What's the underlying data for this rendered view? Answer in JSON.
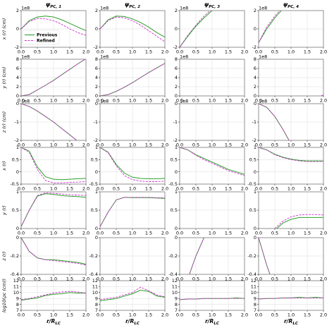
{
  "chart_data": {
    "type": "line",
    "columns": [
      {
        "label": "ψ",
        "sub": "PC, 1"
      },
      {
        "label": "ψ",
        "sub": "PC, 2"
      },
      {
        "label": "ψ",
        "sub": "PC, 3"
      },
      {
        "label": "ψ",
        "sub": "PC, 4"
      }
    ],
    "xlabel": {
      "main": "r/R",
      "sub": "LC"
    },
    "xlim": [
      0,
      2
    ],
    "xticks": [
      "0.0",
      "0.5",
      "1.0",
      "1.5",
      "2.0"
    ],
    "x": [
      0,
      0.25,
      0.5,
      0.75,
      1.0,
      1.25,
      1.5,
      1.75,
      2.0
    ],
    "grid": true,
    "legend": {
      "placement": "lower-left of first panel",
      "entries": [
        {
          "name": "Previous",
          "color": "#2ca02c",
          "style": "solid"
        },
        {
          "name": "Refined",
          "color": "#cc33cc",
          "style": "dashed"
        }
      ]
    },
    "rows": [
      {
        "ylabel": "x (r) (cm)",
        "multiplier": "1e8",
        "ylim": [
          -2,
          2
        ],
        "yticks": [
          -2,
          0,
          2
        ],
        "panels": [
          {
            "previous": [
              0,
              0.9,
              1.3,
              1.4,
              1.3,
              1.0,
              0.6,
              0.2,
              -0.2
            ],
            "refined": [
              0,
              0.8,
              1.15,
              1.1,
              0.9,
              0.5,
              0.0,
              -0.4,
              -0.7
            ]
          },
          {
            "previous": [
              0,
              1.0,
              1.4,
              1.35,
              1.1,
              0.7,
              0.2,
              -0.4,
              -0.9
            ],
            "refined": [
              0,
              0.9,
              1.3,
              1.2,
              0.9,
              0.4,
              -0.2,
              -0.8,
              -1.4
            ]
          },
          {
            "previous": [
              -2.0,
              -0.8,
              0.3,
              1.2,
              2.0,
              2.6,
              3.1,
              3.4,
              3.6
            ],
            "refined": [
              -2.0,
              -0.7,
              0.4,
              1.4,
              2.2,
              2.8,
              3.3,
              3.6,
              3.8
            ]
          },
          {
            "previous": [
              -1.5,
              0,
              1.2,
              2.2,
              3.0,
              3.6,
              4.1,
              4.4,
              4.6
            ],
            "refined": [
              -1.5,
              0.2,
              1.4,
              2.4,
              3.2,
              3.8,
              4.3,
              4.6,
              4.8
            ]
          }
        ]
      },
      {
        "ylabel": "y (r) (cm)",
        "multiplier": "1e8",
        "ylim": [
          0,
          8
        ],
        "yticks": [
          0,
          2,
          4,
          6,
          8
        ],
        "panels": [
          {
            "previous": [
              0,
              0.3,
              1.3,
              2.3,
              3.4,
              4.6,
              5.8,
              7.0,
              8.1
            ],
            "refined": [
              0,
              0.3,
              1.3,
              2.3,
              3.4,
              4.6,
              5.8,
              7.0,
              8.1
            ]
          },
          {
            "previous": [
              0,
              0.3,
              1.0,
              1.9,
              2.9,
              4.0,
              5.1,
              6.1,
              7.1
            ],
            "refined": [
              0,
              0.3,
              1.0,
              1.9,
              2.9,
              4.0,
              5.1,
              6.1,
              7.1
            ]
          },
          {
            "previous": [
              0,
              -0.3,
              -0.7,
              -1.1,
              -1.5,
              -1.9,
              -2.3,
              -2.7,
              -3.2
            ],
            "refined": [
              0,
              -0.2,
              -0.5,
              -0.9,
              -1.2,
              -1.6,
              -2.0,
              -2.4,
              -2.8
            ]
          },
          {
            "previous": [
              -0.5,
              -2.0,
              -3.2,
              -3.5,
              -3.1,
              -2.4,
              -1.6,
              -0.9,
              -0.2
            ],
            "refined": [
              -0.5,
              -2.0,
              -3.1,
              -3.3,
              -2.8,
              -2.0,
              -1.2,
              -0.4,
              0.2
            ]
          }
        ]
      },
      {
        "ylabel": "z (r) (cm)",
        "multiplier": "1e8",
        "ylim": [
          -2,
          0
        ],
        "yticks": [
          -2,
          -1,
          0
        ],
        "panels": [
          {
            "previous": [
              0,
              -0.15,
              -0.4,
              -0.7,
              -1.0,
              -1.35,
              -1.7,
              -2.05,
              -2.4
            ],
            "refined": [
              0,
              -0.15,
              -0.4,
              -0.7,
              -1.0,
              -1.35,
              -1.7,
              -2.05,
              -2.4
            ]
          },
          {
            "previous": [
              0,
              0.2,
              0.7,
              1.3,
              1.9,
              2.6,
              3.3,
              4.0,
              4.8
            ],
            "refined": [
              0,
              0.2,
              0.7,
              1.3,
              1.9,
              2.7,
              3.5,
              4.3,
              5.2
            ]
          },
          {
            "previous": [
              0,
              0.3,
              0.9,
              1.7,
              2.5,
              3.4,
              4.4,
              5.4,
              6.4
            ],
            "refined": [
              0,
              0.3,
              0.9,
              1.7,
              2.6,
              3.5,
              4.5,
              5.6,
              6.8
            ]
          },
          {
            "previous": [
              0,
              -0.2,
              -0.7,
              -1.4,
              -2.2,
              -3.1,
              -4.0,
              -5.0,
              -6.1
            ],
            "refined": [
              0,
              -0.2,
              -0.7,
              -1.4,
              -2.2,
              -3.1,
              -4.0,
              -5.0,
              -6.1
            ]
          }
        ]
      },
      {
        "ylabel": "x (r)",
        "ylim": [
          -0.5,
          1.0
        ],
        "yticks": [
          -0.5,
          0.0,
          0.5,
          1.0
        ],
        "panels": [
          {
            "previous": [
              1.0,
              0.85,
              0.2,
              -0.2,
              -0.3,
              -0.32,
              -0.3,
              -0.28,
              -0.27
            ],
            "refined": [
              1.0,
              0.8,
              0.1,
              -0.35,
              -0.45,
              -0.45,
              -0.43,
              -0.42,
              -0.4
            ]
          },
          {
            "previous": [
              1.0,
              0.8,
              0.3,
              -0.05,
              -0.22,
              -0.27,
              -0.28,
              -0.28,
              -0.27
            ],
            "refined": [
              1.0,
              0.78,
              0.25,
              -0.15,
              -0.32,
              -0.38,
              -0.4,
              -0.4,
              -0.38
            ]
          },
          {
            "previous": [
              1.0,
              0.9,
              0.7,
              0.55,
              0.4,
              0.25,
              0.1,
              0.0,
              -0.1
            ],
            "refined": [
              1.0,
              0.9,
              0.68,
              0.5,
              0.35,
              0.2,
              0.05,
              -0.05,
              -0.15
            ]
          },
          {
            "previous": [
              1.0,
              0.9,
              0.72,
              0.6,
              0.52,
              0.47,
              0.45,
              0.45,
              0.45
            ],
            "refined": [
              1.0,
              0.9,
              0.7,
              0.58,
              0.5,
              0.45,
              0.42,
              0.42,
              0.42
            ]
          }
        ]
      },
      {
        "ylabel": "y (r)",
        "ylim": [
          0.0,
          1.0
        ],
        "yticks": [
          0.0,
          0.5,
          1.0
        ],
        "panels": [
          {
            "previous": [
              0.05,
              0.5,
              0.88,
              0.95,
              0.93,
              0.9,
              0.88,
              0.87,
              0.85
            ],
            "refined": [
              0.05,
              0.5,
              0.9,
              0.97,
              0.96,
              0.94,
              0.92,
              0.91,
              0.9
            ]
          },
          {
            "previous": [
              0.05,
              0.45,
              0.78,
              0.85,
              0.84,
              0.84,
              0.84,
              0.83,
              0.82
            ],
            "refined": [
              0.05,
              0.45,
              0.78,
              0.85,
              0.85,
              0.85,
              0.85,
              0.84,
              0.84
            ]
          },
          {
            "previous": [
              -0.1,
              -0.2,
              -0.33,
              -0.36,
              -0.38,
              -0.38,
              -0.37,
              -0.36,
              -0.35
            ],
            "refined": [
              -0.1,
              -0.2,
              -0.3,
              -0.3,
              -0.32,
              -0.3,
              -0.29,
              -0.28,
              -0.28
            ]
          },
          {
            "previous": [
              -0.2,
              -0.25,
              -0.05,
              0.15,
              0.25,
              0.3,
              0.3,
              0.3,
              0.3
            ],
            "refined": [
              -0.2,
              -0.2,
              0.0,
              0.2,
              0.32,
              0.37,
              0.38,
              0.38,
              0.37
            ]
          }
        ]
      },
      {
        "ylabel": "z (r)",
        "ylim": [
          -0.4,
          0.0
        ],
        "yticks": [
          -0.4,
          -0.2,
          0.0
        ],
        "panels": [
          {
            "previous": [
              0.0,
              -0.15,
              -0.22,
              -0.24,
              -0.24,
              -0.25,
              -0.26,
              -0.27,
              -0.29
            ],
            "refined": [
              0.0,
              -0.15,
              -0.22,
              -0.24,
              -0.25,
              -0.26,
              -0.27,
              -0.28,
              -0.3
            ]
          },
          {
            "previous": [
              0.0,
              0.6,
              0.72,
              0.6,
              0.5,
              0.45,
              0.47,
              0.5,
              0.55
            ],
            "refined": [
              0.0,
              0.55,
              0.68,
              0.6,
              0.55,
              0.52,
              0.53,
              0.56,
              0.6
            ]
          },
          {
            "previous": [
              -0.8,
              -0.45,
              -0.2,
              0.0,
              0.1,
              0.15,
              0.18,
              0.2,
              0.22
            ],
            "refined": [
              -0.8,
              -0.45,
              -0.2,
              0.0,
              0.12,
              0.18,
              0.22,
              0.24,
              0.25
            ]
          },
          {
            "previous": [
              0.0,
              -0.3,
              -0.55,
              -0.7,
              -0.8,
              -0.87,
              -0.9,
              -0.93,
              -0.95
            ],
            "refined": [
              0.0,
              -0.3,
              -0.55,
              -0.7,
              -0.8,
              -0.87,
              -0.9,
              -0.93,
              -0.95
            ]
          }
        ]
      },
      {
        "ylabel": "log10(ρc (cm))",
        "ylim": [
          7,
          12
        ],
        "yticks": [
          7,
          8,
          9,
          10,
          11,
          12
        ],
        "panels": [
          {
            "previous": [
              8.7,
              8.9,
              9.1,
              9.5,
              9.7,
              9.8,
              10.0,
              9.9,
              9.9
            ],
            "refined": [
              8.8,
              9.0,
              9.3,
              9.6,
              9.9,
              10.1,
              10.2,
              10.1,
              9.9
            ]
          },
          {
            "previous": [
              8.6,
              8.8,
              9.0,
              9.4,
              9.8,
              10.4,
              10.2,
              9.4,
              9.2
            ],
            "refined": [
              8.8,
              9.0,
              9.2,
              9.6,
              10.0,
              10.9,
              10.3,
              9.6,
              9.3
            ]
          },
          {
            "previous": [
              8.8,
              8.9,
              8.9,
              9.0,
              9.0,
              9.0,
              9.0,
              9.1,
              9.0
            ],
            "refined": [
              8.8,
              8.9,
              8.9,
              9.0,
              9.0,
              9.0,
              9.0,
              9.0,
              9.0
            ]
          },
          {
            "previous": [
              8.9,
              9.0,
              9.0,
              9.1,
              9.1,
              9.2,
              9.1,
              9.2,
              9.1
            ],
            "refined": [
              8.9,
              9.0,
              9.0,
              9.1,
              9.1,
              9.1,
              9.1,
              9.1,
              9.1
            ]
          }
        ]
      }
    ]
  }
}
